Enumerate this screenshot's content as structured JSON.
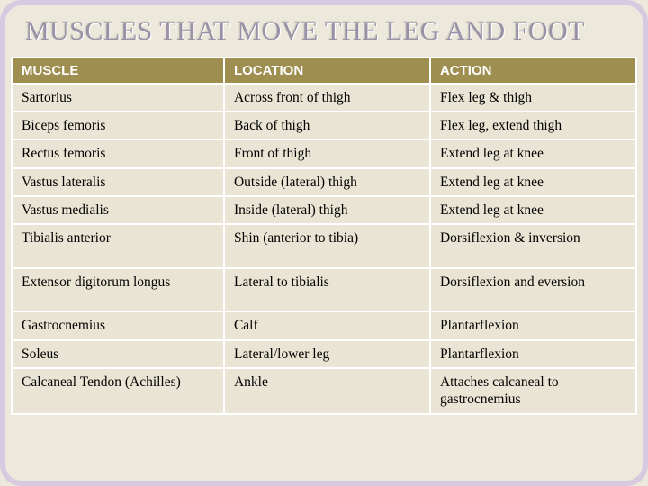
{
  "slide": {
    "title": "MUSCLES THAT MOVE THE LEG AND FOOT"
  },
  "colors": {
    "slide_bg": "#ece9dc",
    "slide_border": "#d6c9e0",
    "title_color": "#9a91a6",
    "header_bg": "#9e8e4f",
    "header_fg": "#ffffff",
    "cell_bg": "#e9e4d3",
    "cell_fg": "#000000",
    "cell_border": "#ffffff"
  },
  "table": {
    "columns": [
      "MUSCLE",
      "LOCATION",
      "ACTION"
    ],
    "col_widths_pct": [
      34,
      33,
      33
    ],
    "header_fontsize": 15,
    "cell_fontsize": 15.5,
    "rows": [
      {
        "cells": [
          "Sartorius",
          "Across front of thigh",
          "Flex leg & thigh"
        ],
        "tall": false
      },
      {
        "cells": [
          "Biceps femoris",
          "Back of thigh",
          "Flex leg, extend thigh"
        ],
        "tall": false
      },
      {
        "cells": [
          "Rectus femoris",
          "Front of thigh",
          "Extend leg at knee"
        ],
        "tall": false
      },
      {
        "cells": [
          "Vastus lateralis",
          "Outside (lateral) thigh",
          "Extend leg at knee"
        ],
        "tall": false
      },
      {
        "cells": [
          "Vastus medialis",
          "Inside (lateral) thigh",
          "Extend leg at knee"
        ],
        "tall": false
      },
      {
        "cells": [
          "Tibialis anterior",
          "Shin (anterior to tibia)",
          "Dorsiflexion & inversion"
        ],
        "tall": true
      },
      {
        "cells": [
          "Extensor digitorum longus",
          "Lateral to tibialis",
          "Dorsiflexion and eversion"
        ],
        "tall": true
      },
      {
        "cells": [
          "Gastrocnemius",
          "Calf",
          "Plantarflexion"
        ],
        "tall": false
      },
      {
        "cells": [
          "Soleus",
          "Lateral/lower leg",
          "Plantarflexion"
        ],
        "tall": false
      },
      {
        "cells": [
          "Calcaneal Tendon (Achilles)",
          "Ankle",
          "Attaches calcaneal to gastrocnemius"
        ],
        "tall": false
      }
    ]
  }
}
